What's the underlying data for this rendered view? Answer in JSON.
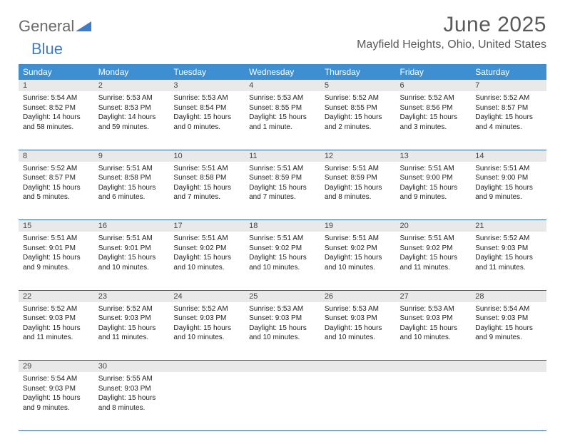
{
  "logo": {
    "text1": "General",
    "text2": "Blue"
  },
  "title": "June 2025",
  "location": "Mayfield Heights, Ohio, United States",
  "colors": {
    "header_bg": "#3d8fd1",
    "header_fg": "#ffffff",
    "daynum_bg": "#e9e9e9",
    "rule": "#2a5d8f",
    "text": "#222222",
    "title_fg": "#5a5a5a",
    "logo_gray": "#6a6a6a",
    "logo_blue": "#3d7cc9"
  },
  "weekdays": [
    "Sunday",
    "Monday",
    "Tuesday",
    "Wednesday",
    "Thursday",
    "Friday",
    "Saturday"
  ],
  "weeks": [
    [
      {
        "n": "1",
        "sunrise": "5:54 AM",
        "sunset": "8:52 PM",
        "daylight": "14 hours and 58 minutes."
      },
      {
        "n": "2",
        "sunrise": "5:53 AM",
        "sunset": "8:53 PM",
        "daylight": "14 hours and 59 minutes."
      },
      {
        "n": "3",
        "sunrise": "5:53 AM",
        "sunset": "8:54 PM",
        "daylight": "15 hours and 0 minutes."
      },
      {
        "n": "4",
        "sunrise": "5:53 AM",
        "sunset": "8:55 PM",
        "daylight": "15 hours and 1 minute."
      },
      {
        "n": "5",
        "sunrise": "5:52 AM",
        "sunset": "8:55 PM",
        "daylight": "15 hours and 2 minutes."
      },
      {
        "n": "6",
        "sunrise": "5:52 AM",
        "sunset": "8:56 PM",
        "daylight": "15 hours and 3 minutes."
      },
      {
        "n": "7",
        "sunrise": "5:52 AM",
        "sunset": "8:57 PM",
        "daylight": "15 hours and 4 minutes."
      }
    ],
    [
      {
        "n": "8",
        "sunrise": "5:52 AM",
        "sunset": "8:57 PM",
        "daylight": "15 hours and 5 minutes."
      },
      {
        "n": "9",
        "sunrise": "5:51 AM",
        "sunset": "8:58 PM",
        "daylight": "15 hours and 6 minutes."
      },
      {
        "n": "10",
        "sunrise": "5:51 AM",
        "sunset": "8:58 PM",
        "daylight": "15 hours and 7 minutes."
      },
      {
        "n": "11",
        "sunrise": "5:51 AM",
        "sunset": "8:59 PM",
        "daylight": "15 hours and 7 minutes."
      },
      {
        "n": "12",
        "sunrise": "5:51 AM",
        "sunset": "8:59 PM",
        "daylight": "15 hours and 8 minutes."
      },
      {
        "n": "13",
        "sunrise": "5:51 AM",
        "sunset": "9:00 PM",
        "daylight": "15 hours and 9 minutes."
      },
      {
        "n": "14",
        "sunrise": "5:51 AM",
        "sunset": "9:00 PM",
        "daylight": "15 hours and 9 minutes."
      }
    ],
    [
      {
        "n": "15",
        "sunrise": "5:51 AM",
        "sunset": "9:01 PM",
        "daylight": "15 hours and 9 minutes."
      },
      {
        "n": "16",
        "sunrise": "5:51 AM",
        "sunset": "9:01 PM",
        "daylight": "15 hours and 10 minutes."
      },
      {
        "n": "17",
        "sunrise": "5:51 AM",
        "sunset": "9:02 PM",
        "daylight": "15 hours and 10 minutes."
      },
      {
        "n": "18",
        "sunrise": "5:51 AM",
        "sunset": "9:02 PM",
        "daylight": "15 hours and 10 minutes."
      },
      {
        "n": "19",
        "sunrise": "5:51 AM",
        "sunset": "9:02 PM",
        "daylight": "15 hours and 10 minutes."
      },
      {
        "n": "20",
        "sunrise": "5:51 AM",
        "sunset": "9:02 PM",
        "daylight": "15 hours and 11 minutes."
      },
      {
        "n": "21",
        "sunrise": "5:52 AM",
        "sunset": "9:03 PM",
        "daylight": "15 hours and 11 minutes."
      }
    ],
    [
      {
        "n": "22",
        "sunrise": "5:52 AM",
        "sunset": "9:03 PM",
        "daylight": "15 hours and 11 minutes."
      },
      {
        "n": "23",
        "sunrise": "5:52 AM",
        "sunset": "9:03 PM",
        "daylight": "15 hours and 11 minutes."
      },
      {
        "n": "24",
        "sunrise": "5:52 AM",
        "sunset": "9:03 PM",
        "daylight": "15 hours and 10 minutes."
      },
      {
        "n": "25",
        "sunrise": "5:53 AM",
        "sunset": "9:03 PM",
        "daylight": "15 hours and 10 minutes."
      },
      {
        "n": "26",
        "sunrise": "5:53 AM",
        "sunset": "9:03 PM",
        "daylight": "15 hours and 10 minutes."
      },
      {
        "n": "27",
        "sunrise": "5:53 AM",
        "sunset": "9:03 PM",
        "daylight": "15 hours and 10 minutes."
      },
      {
        "n": "28",
        "sunrise": "5:54 AM",
        "sunset": "9:03 PM",
        "daylight": "15 hours and 9 minutes."
      }
    ],
    [
      {
        "n": "29",
        "sunrise": "5:54 AM",
        "sunset": "9:03 PM",
        "daylight": "15 hours and 9 minutes."
      },
      {
        "n": "30",
        "sunrise": "5:55 AM",
        "sunset": "9:03 PM",
        "daylight": "15 hours and 8 minutes."
      },
      null,
      null,
      null,
      null,
      null
    ]
  ],
  "labels": {
    "sunrise": "Sunrise:",
    "sunset": "Sunset:",
    "daylight": "Daylight:"
  }
}
